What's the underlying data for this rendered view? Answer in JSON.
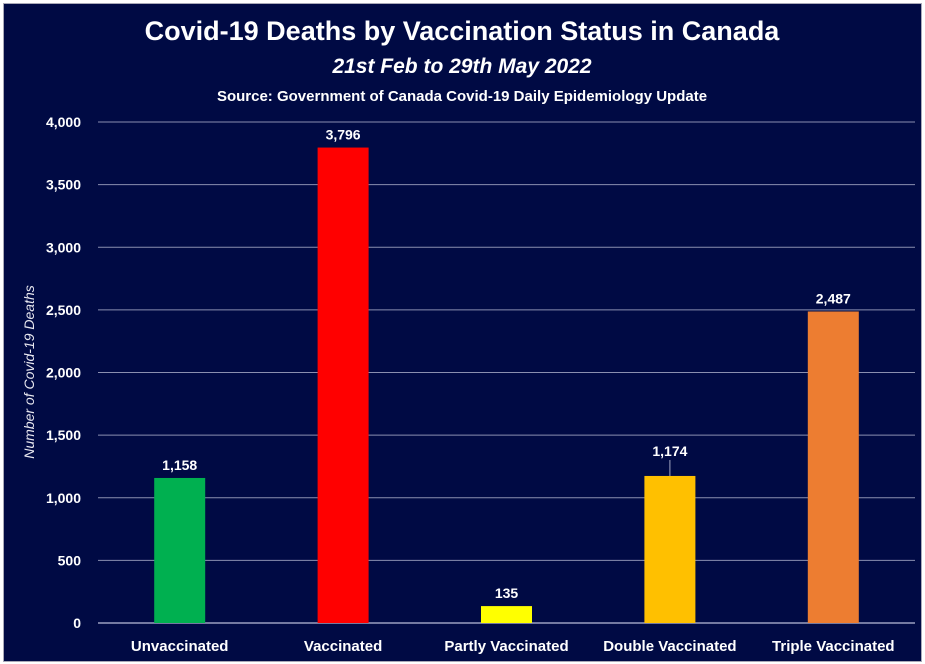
{
  "chart_data": {
    "type": "bar",
    "title": "Covid-19 Deaths by Vaccination Status in Canada",
    "subtitle": "21st Feb to 29th May 2022",
    "source": "Source: Government of Canada Covid-19 Daily Epidemiology Update",
    "xlabel": "",
    "ylabel": "Number of Covid-19 Deaths",
    "ylim": [
      0,
      4000
    ],
    "yticks": [
      0,
      500,
      1000,
      1500,
      2000,
      2500,
      3000,
      3500,
      4000
    ],
    "ytick_labels": [
      "0",
      "500",
      "1,000",
      "1,500",
      "2,000",
      "2,500",
      "3,000",
      "3,500",
      "4,000"
    ],
    "grid": true,
    "legend": "none",
    "categories": [
      "Unvaccinated",
      "Vaccinated",
      "Partly Vaccinated",
      "Double Vaccinated",
      "Triple Vaccinated"
    ],
    "values": [
      1158,
      3796,
      135,
      1174,
      2487
    ],
    "value_labels": [
      "1,158",
      "3,796",
      "135",
      "1,174",
      "2,487"
    ],
    "colors": [
      "#00b050",
      "#ff0000",
      "#ffff00",
      "#ffc000",
      "#ed7d31"
    ]
  },
  "theme": {
    "background": "#000a44",
    "text": "#ffffff",
    "grid": "#8a8fb0"
  }
}
